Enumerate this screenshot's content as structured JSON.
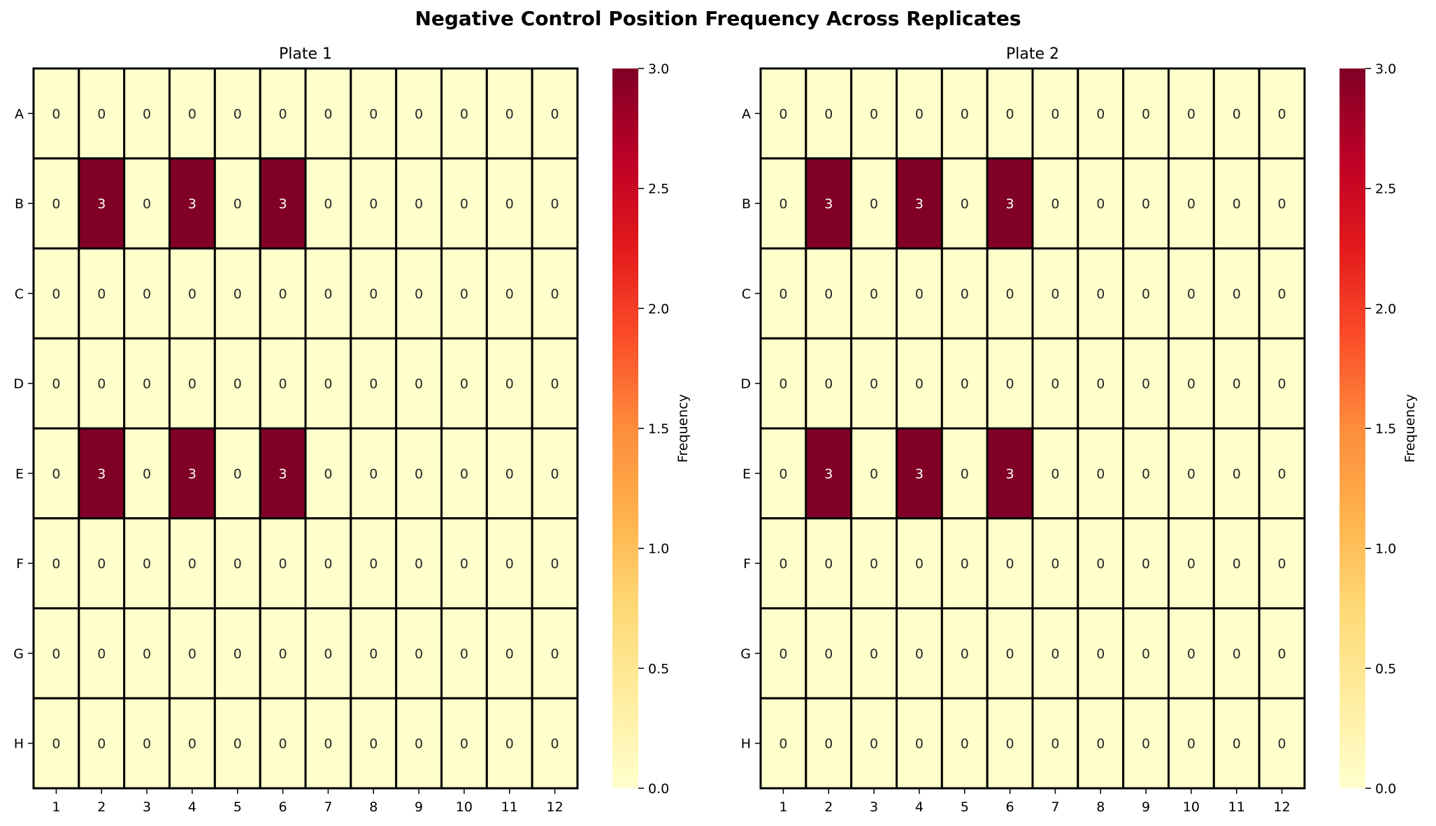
{
  "figure": {
    "title": "Negative Control Position Frequency Across Replicates"
  },
  "chart_data": [
    {
      "type": "heatmap",
      "title": "Plate 1",
      "rows": [
        "A",
        "B",
        "C",
        "D",
        "E",
        "F",
        "G",
        "H"
      ],
      "columns": [
        "1",
        "2",
        "3",
        "4",
        "5",
        "6",
        "7",
        "8",
        "9",
        "10",
        "11",
        "12"
      ],
      "values": [
        [
          0,
          0,
          0,
          0,
          0,
          0,
          0,
          0,
          0,
          0,
          0,
          0
        ],
        [
          0,
          3,
          0,
          3,
          0,
          3,
          0,
          0,
          0,
          0,
          0,
          0
        ],
        [
          0,
          0,
          0,
          0,
          0,
          0,
          0,
          0,
          0,
          0,
          0,
          0
        ],
        [
          0,
          0,
          0,
          0,
          0,
          0,
          0,
          0,
          0,
          0,
          0,
          0
        ],
        [
          0,
          3,
          0,
          3,
          0,
          3,
          0,
          0,
          0,
          0,
          0,
          0
        ],
        [
          0,
          0,
          0,
          0,
          0,
          0,
          0,
          0,
          0,
          0,
          0,
          0
        ],
        [
          0,
          0,
          0,
          0,
          0,
          0,
          0,
          0,
          0,
          0,
          0,
          0
        ],
        [
          0,
          0,
          0,
          0,
          0,
          0,
          0,
          0,
          0,
          0,
          0,
          0
        ]
      ],
      "colorbar": {
        "label": "Frequency",
        "range": [
          0.0,
          3.0
        ],
        "ticks": [
          "0.0",
          "0.5",
          "1.0",
          "1.5",
          "2.0",
          "2.5",
          "3.0"
        ],
        "colormap": "YlOrRd"
      },
      "annotated": true
    },
    {
      "type": "heatmap",
      "title": "Plate 2",
      "rows": [
        "A",
        "B",
        "C",
        "D",
        "E",
        "F",
        "G",
        "H"
      ],
      "columns": [
        "1",
        "2",
        "3",
        "4",
        "5",
        "6",
        "7",
        "8",
        "9",
        "10",
        "11",
        "12"
      ],
      "values": [
        [
          0,
          0,
          0,
          0,
          0,
          0,
          0,
          0,
          0,
          0,
          0,
          0
        ],
        [
          0,
          3,
          0,
          3,
          0,
          3,
          0,
          0,
          0,
          0,
          0,
          0
        ],
        [
          0,
          0,
          0,
          0,
          0,
          0,
          0,
          0,
          0,
          0,
          0,
          0
        ],
        [
          0,
          0,
          0,
          0,
          0,
          0,
          0,
          0,
          0,
          0,
          0,
          0
        ],
        [
          0,
          3,
          0,
          3,
          0,
          3,
          0,
          0,
          0,
          0,
          0,
          0
        ],
        [
          0,
          0,
          0,
          0,
          0,
          0,
          0,
          0,
          0,
          0,
          0,
          0
        ],
        [
          0,
          0,
          0,
          0,
          0,
          0,
          0,
          0,
          0,
          0,
          0,
          0
        ],
        [
          0,
          0,
          0,
          0,
          0,
          0,
          0,
          0,
          0,
          0,
          0,
          0
        ]
      ],
      "colorbar": {
        "label": "Frequency",
        "range": [
          0.0,
          3.0
        ],
        "ticks": [
          "0.0",
          "0.5",
          "1.0",
          "1.5",
          "2.0",
          "2.5",
          "3.0"
        ],
        "colormap": "YlOrRd"
      },
      "annotated": true
    }
  ],
  "colors": {
    "low": "#ffffcc",
    "high": "#800026",
    "grid_line": "#000000"
  }
}
